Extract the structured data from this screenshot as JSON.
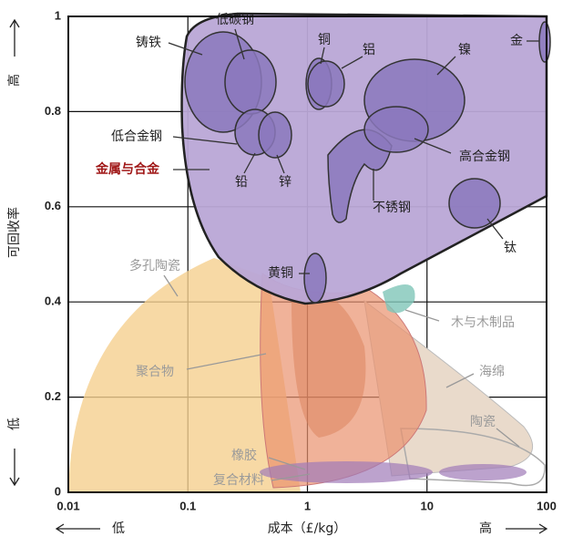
{
  "chart_data": {
    "type": "ashby",
    "y_label": "可回收率",
    "y_high": "高",
    "y_low": "低",
    "x_label": "成本（£/kg）",
    "x_low": "低",
    "x_high": "高",
    "xlim": [
      0.01,
      100
    ],
    "xticks": [
      0.01,
      0.1,
      1,
      10,
      100
    ],
    "log_x": true,
    "ylim": [
      0,
      1
    ],
    "yticks": [
      0,
      0.2,
      0.4,
      0.6,
      0.8,
      1
    ],
    "grid": true,
    "regions": [
      {
        "name": "铸铁"
      },
      {
        "name": "低碳钢"
      },
      {
        "name": "铜"
      },
      {
        "name": "铝"
      },
      {
        "name": "镍"
      },
      {
        "name": "金"
      },
      {
        "name": "低合金钢"
      },
      {
        "name": "金属与合金"
      },
      {
        "name": "铅"
      },
      {
        "name": "锌"
      },
      {
        "name": "高合金钢"
      },
      {
        "name": "不锈钢"
      },
      {
        "name": "钛"
      },
      {
        "name": "黄铜"
      },
      {
        "name": "多孔陶瓷"
      },
      {
        "name": "木与木制品"
      },
      {
        "name": "聚合物"
      },
      {
        "name": "海绵"
      },
      {
        "name": "陶瓷"
      },
      {
        "name": "橡胶"
      },
      {
        "name": "复合材料"
      }
    ]
  }
}
